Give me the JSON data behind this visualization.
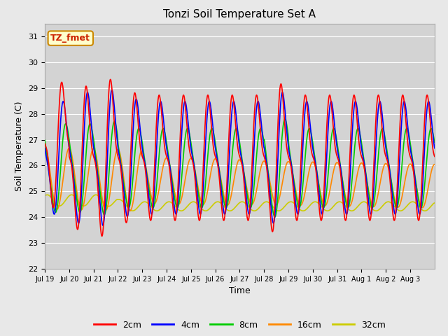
{
  "title": "Tonzi Soil Temperature Set A",
  "xlabel": "Time",
  "ylabel": "Soil Temperature (C)",
  "ylim": [
    22.0,
    31.5
  ],
  "yticks": [
    22.0,
    23.0,
    24.0,
    25.0,
    26.0,
    27.0,
    28.0,
    29.0,
    30.0,
    31.0
  ],
  "legend_label": "TZ_fmet",
  "series_labels": [
    "2cm",
    "4cm",
    "8cm",
    "16cm",
    "32cm"
  ],
  "series_colors": [
    "#ff0000",
    "#0000ff",
    "#00cc00",
    "#ff8800",
    "#cccc00"
  ],
  "background_color": "#e8e8e8",
  "plot_bg_color": "#d3d3d3",
  "xtick_labels": [
    "Jul 19",
    "Jul 20",
    "Jul 21",
    "Jul 22",
    "Jul 23",
    "Jul 24",
    "Jul 25",
    "Jul 26",
    "Jul 27",
    "Jul 28",
    "Jul 29",
    "Jul 30",
    "Jul 31",
    "Aug 1",
    "Aug 2",
    "Aug 3"
  ],
  "n_days": 16,
  "points_per_day": 96
}
